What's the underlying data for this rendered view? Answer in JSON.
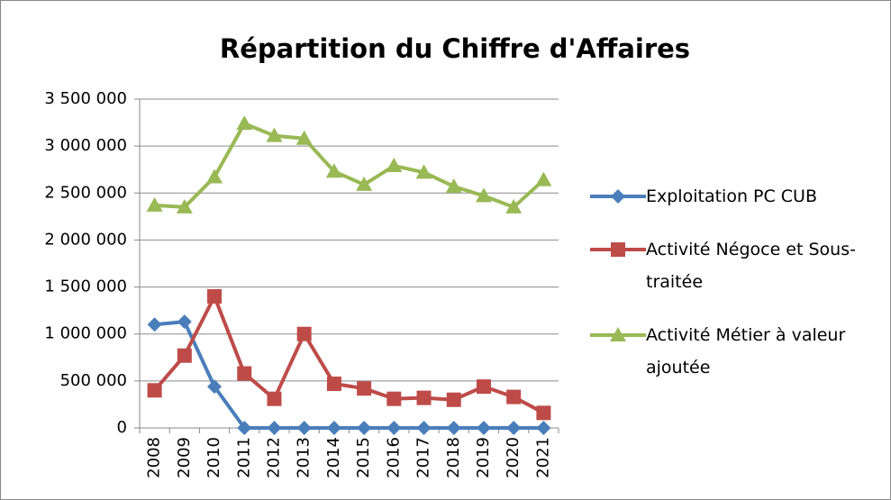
{
  "chart_data": {
    "type": "line",
    "title": "Répartition du Chiffre d'Affaires",
    "categories": [
      "2008",
      "2009",
      "2010",
      "2011",
      "2012",
      "2013",
      "2014",
      "2015",
      "2016",
      "2017",
      "2018",
      "2019",
      "2020",
      "2021"
    ],
    "series": [
      {
        "name": "Exploitation PC CUB",
        "color": "#4a7ebb",
        "marker": "diamond",
        "values": [
          1100000,
          1130000,
          440000,
          0,
          0,
          0,
          0,
          0,
          0,
          0,
          0,
          0,
          0,
          0
        ]
      },
      {
        "name": "Activité Négoce et Sous-traitée",
        "color": "#be4b48",
        "marker": "square",
        "values": [
          400000,
          770000,
          1400000,
          580000,
          310000,
          1000000,
          470000,
          420000,
          310000,
          320000,
          300000,
          440000,
          330000,
          160000
        ]
      },
      {
        "name": "Activité Métier à valeur ajoutée",
        "color": "#98b954",
        "marker": "triangle",
        "values": [
          2370000,
          2350000,
          2670000,
          3240000,
          3110000,
          3080000,
          2730000,
          2590000,
          2790000,
          2720000,
          2570000,
          2470000,
          2350000,
          2640000
        ]
      }
    ],
    "ylim": [
      0,
      3500000
    ],
    "yticks": [
      0,
      {
        "value": 500000,
        "label": "500 000"
      },
      {
        "value": 1000000,
        "label": "1 000 000"
      },
      {
        "value": 1500000,
        "label": "1 500 000"
      },
      {
        "value": 2000000,
        "label": "2 000 000"
      },
      {
        "value": 2500000,
        "label": "2 500 000"
      },
      {
        "value": 3000000,
        "label": "3 000 000"
      },
      {
        "value": 3500000,
        "label": "3 500 000"
      }
    ],
    "grid": true,
    "legend": "right"
  }
}
